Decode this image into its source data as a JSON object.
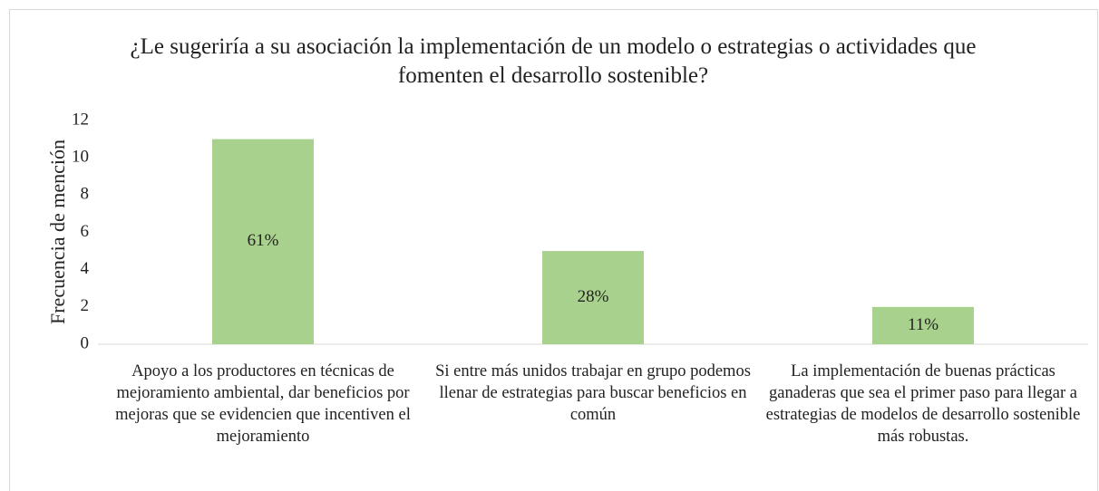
{
  "chart_data": {
    "type": "bar",
    "title": "¿Le sugeriría a su asociación la implementación de un modelo o estrategias o actividades que fomenten el desarrollo sostenible?",
    "y_label": "Frecuencia de mención",
    "categories": [
      "Apoyo a los productores en técnicas de mejoramiento ambiental, dar beneficios por mejoras que se evidencien que incentiven el mejoramiento",
      "Si entre más unidos trabajar en grupo podemos llenar de estrategias para buscar beneficios en común",
      "La implementación de buenas prácticas ganaderas que sea el primer paso para llegar a estrategias de modelos de desarrollo sostenible más robustas."
    ],
    "values": [
      11,
      5,
      2
    ],
    "percent_labels": [
      "61%",
      "28%",
      "11%"
    ],
    "color": "#a9d18e",
    "ylim": [
      0,
      12
    ],
    "yticks": [
      0,
      2,
      4,
      6,
      8,
      10,
      12
    ],
    "grid": false
  }
}
